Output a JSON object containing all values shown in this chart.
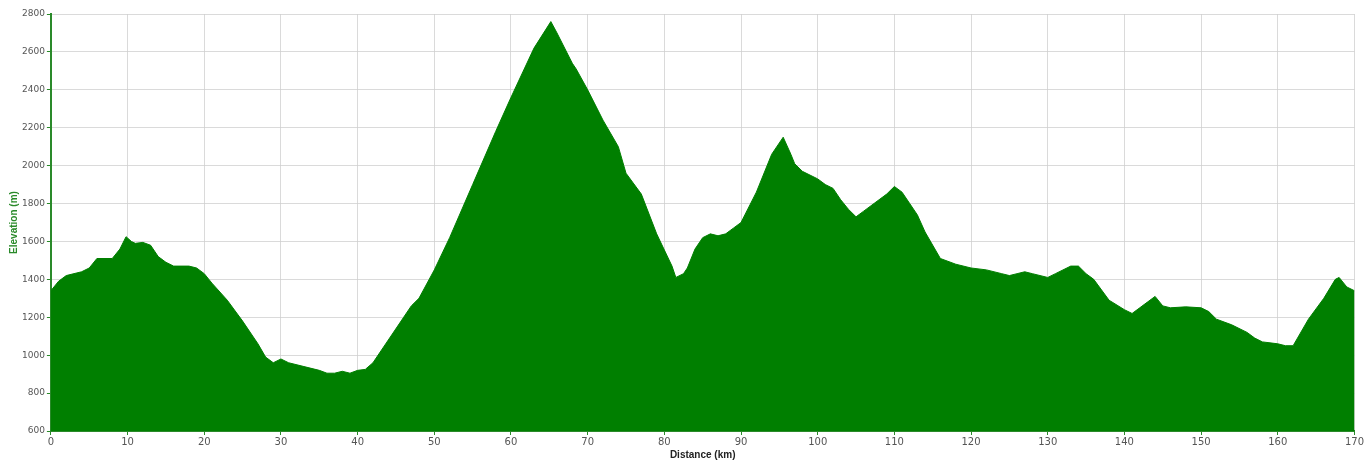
{
  "chart_data": {
    "type": "area",
    "xlabel": "Distance (km)",
    "ylabel": "Elevation (m)",
    "xlim": [
      0,
      170
    ],
    "xticks": [
      0,
      10,
      20,
      30,
      40,
      50,
      60,
      70,
      80,
      90,
      100,
      110,
      120,
      130,
      140,
      150,
      160,
      170
    ],
    "ylim": [
      600,
      2800
    ],
    "yticks": [
      600,
      800,
      1000,
      1200,
      1400,
      1600,
      1800,
      2000,
      2200,
      2400,
      2600,
      2800
    ],
    "grid": true,
    "legend": false,
    "marker": "none",
    "series": [
      {
        "color": "#007f00",
        "x": [
          0,
          1,
          2,
          4,
          5,
          6,
          8,
          9,
          9.8,
          10.5,
          11,
          12,
          13,
          14,
          15,
          16,
          18,
          19,
          20,
          21,
          23,
          25,
          27,
          28,
          29,
          30,
          31,
          33,
          35,
          36,
          37,
          38,
          39,
          40,
          41,
          42,
          44,
          46,
          47,
          48,
          50,
          52,
          55,
          58,
          60,
          63,
          65.2,
          66,
          68,
          68.5,
          70,
          72,
          74,
          75,
          77,
          79,
          81,
          81.5,
          82.5,
          83,
          84,
          85,
          86,
          87,
          88,
          89,
          90,
          92,
          94,
          95.5,
          96.5,
          97,
          98,
          100,
          101,
          102,
          103,
          104,
          105,
          106,
          108,
          109,
          110,
          111,
          112,
          113,
          114,
          116,
          118,
          120,
          122,
          124,
          125,
          126,
          127,
          128,
          130,
          131,
          133,
          134,
          135,
          136,
          138,
          140,
          141,
          142,
          143,
          144,
          145,
          146,
          148,
          150,
          151,
          152,
          154,
          156,
          157,
          158,
          160,
          161,
          162,
          164,
          166,
          167.5,
          168,
          169,
          170
        ],
        "values": [
          1340,
          1390,
          1420,
          1440,
          1460,
          1510,
          1510,
          1560,
          1625,
          1600,
          1590,
          1595,
          1580,
          1520,
          1490,
          1470,
          1470,
          1460,
          1430,
          1380,
          1290,
          1180,
          1060,
          990,
          960,
          980,
          960,
          940,
          920,
          905,
          905,
          915,
          905,
          920,
          925,
          960,
          1080,
          1200,
          1260,
          1300,
          1450,
          1620,
          1900,
          2180,
          2360,
          2620,
          2760,
          2700,
          2540,
          2510,
          2400,
          2240,
          2100,
          1960,
          1850,
          1640,
          1470,
          1410,
          1430,
          1460,
          1560,
          1620,
          1640,
          1630,
          1640,
          1670,
          1700,
          1860,
          2060,
          2150,
          2060,
          2010,
          1970,
          1930,
          1900,
          1880,
          1820,
          1770,
          1730,
          1760,
          1820,
          1850,
          1890,
          1860,
          1800,
          1740,
          1650,
          1510,
          1480,
          1460,
          1450,
          1430,
          1420,
          1430,
          1440,
          1430,
          1410,
          1430,
          1470,
          1470,
          1430,
          1400,
          1290,
          1240,
          1220,
          1250,
          1280,
          1310,
          1260,
          1250,
          1255,
          1250,
          1230,
          1190,
          1160,
          1120,
          1090,
          1070,
          1060,
          1050,
          1050,
          1190,
          1300,
          1400,
          1410,
          1360,
          1340
        ]
      }
    ]
  }
}
